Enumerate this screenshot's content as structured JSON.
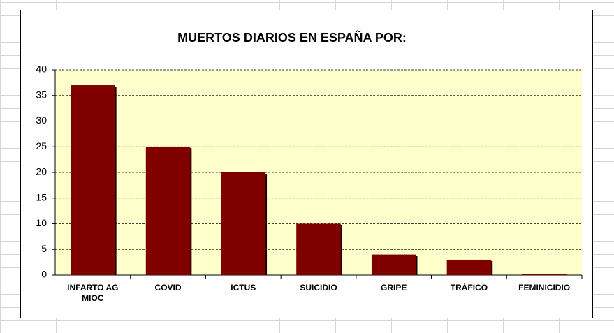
{
  "chart_data": {
    "type": "bar",
    "title": "MUERTOS DIARIOS EN ESPAÑA POR:",
    "categories": [
      "INFARTO AG MIOC",
      "COVID",
      "ICTUS",
      "SUICIDIO",
      "GRIPE",
      "TRÁFICO",
      "FEMINICIDIO"
    ],
    "values": [
      37,
      25,
      20,
      10,
      4,
      3,
      0.2
    ],
    "color": "#800000",
    "ylim": [
      0,
      40
    ],
    "yticks": [
      0,
      5,
      10,
      15,
      20,
      25,
      30,
      35,
      40
    ],
    "grid": true
  }
}
